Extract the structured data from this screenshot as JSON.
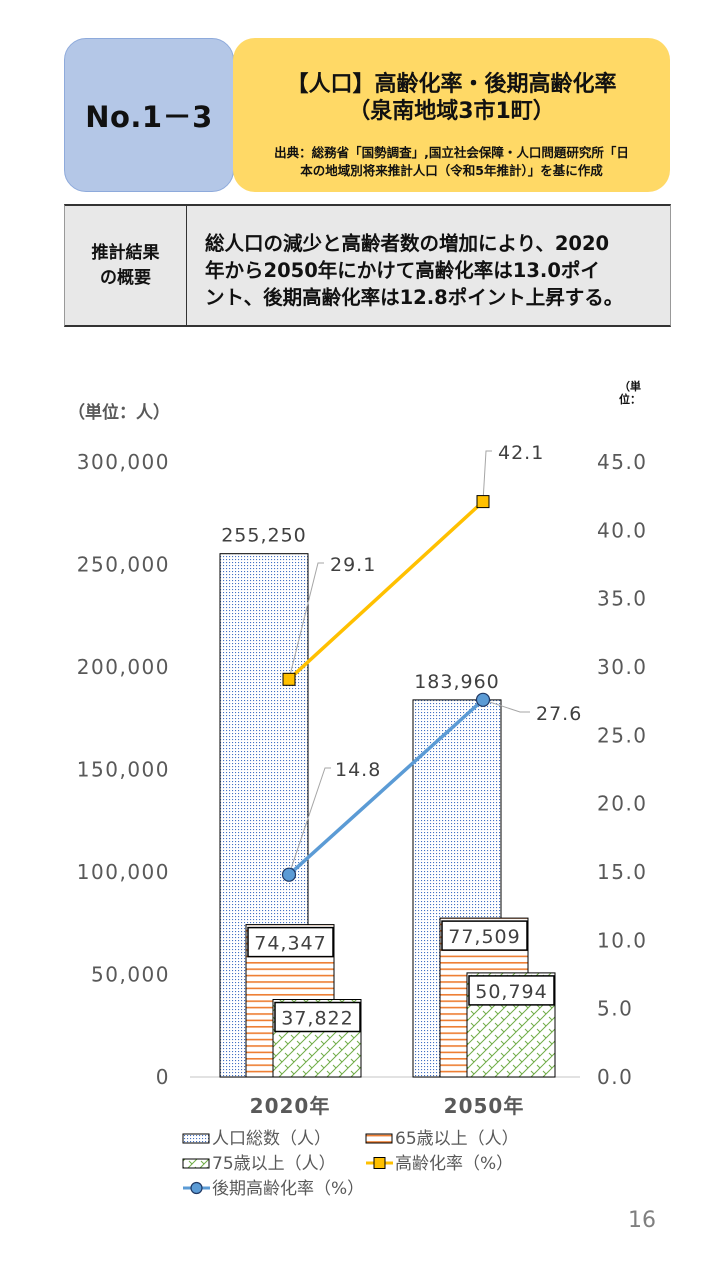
{
  "header": {
    "number": "No.1－3",
    "title_line1": "【人口】高齢化率・後期高齢化率",
    "title_line2": "（泉南地域3市1町）",
    "source_line1": "出典：総務省「国勢調査」,国立社会保障・人口問題研究所「日",
    "source_line2": "本の地域別将来推計人口（令和5年推計）」を基に作成"
  },
  "summary": {
    "label_line1": "推計結果",
    "label_line2": "の概要",
    "text_line1": "総人口の減少と高齢者数の増加により、2020",
    "text_line2": "年から2050年にかけて高齢化率は13.0ポイ",
    "text_line3": "ント、後期高齢化率は12.8ポイント上昇する。"
  },
  "page_number": "16",
  "chart_data": {
    "type": "bar+line",
    "title": "",
    "xlabel": "",
    "ylabel": "（単位：人）",
    "ylabel_right_lines": [
      "（単",
      "位："
    ],
    "categories": [
      "2020年",
      "2050年"
    ],
    "y_left": {
      "max": 300000,
      "range": [
        0,
        300000
      ],
      "tick_values": [
        0,
        50000,
        100000,
        150000,
        200000,
        250000,
        300000
      ],
      "ticks": [
        "0",
        "50,000",
        "100,000",
        "150,000",
        "200,000",
        "250,000",
        "300,000"
      ]
    },
    "y_right": {
      "max": 45,
      "range": [
        0,
        45
      ],
      "tick_values": [
        0,
        5,
        10,
        15,
        20,
        25,
        30,
        35,
        40,
        45
      ],
      "ticks": [
        "0.0",
        "5.0",
        "10.0",
        "15.0",
        "20.0",
        "25.0",
        "30.0",
        "35.0",
        "40.0",
        "45.0"
      ]
    },
    "series": [
      {
        "name": "人口総数（人）",
        "type": "bar",
        "axis": "left",
        "values": [
          255250,
          183960
        ],
        "labels": [
          "255,250",
          "183,960"
        ],
        "color": "#4472c4",
        "pattern": "dots"
      },
      {
        "name": "65歳以上（人）",
        "type": "bar",
        "axis": "left",
        "values": [
          74347,
          77509
        ],
        "labels": [
          "74,347",
          "77,509"
        ],
        "color": "#ed7d31",
        "pattern": "horizontal-lines"
      },
      {
        "name": "75歳以上（人）",
        "type": "bar",
        "axis": "left",
        "values": [
          37822,
          50794
        ],
        "labels": [
          "37,822",
          "50,794"
        ],
        "color": "#70ad47",
        "pattern": "zigzag"
      },
      {
        "name": "高齢化率（%）",
        "type": "line",
        "axis": "right",
        "values": [
          29.1,
          42.1
        ],
        "labels": [
          "29.1",
          "42.1"
        ],
        "color": "#ffc000",
        "marker": "square"
      },
      {
        "name": "後期高齢化率（%）",
        "type": "line",
        "axis": "right",
        "values": [
          14.8,
          27.6
        ],
        "labels": [
          "14.8",
          "27.6"
        ],
        "color": "#5b9bd5",
        "marker": "circle"
      }
    ],
    "grid": false,
    "legend_position": "bottom"
  }
}
